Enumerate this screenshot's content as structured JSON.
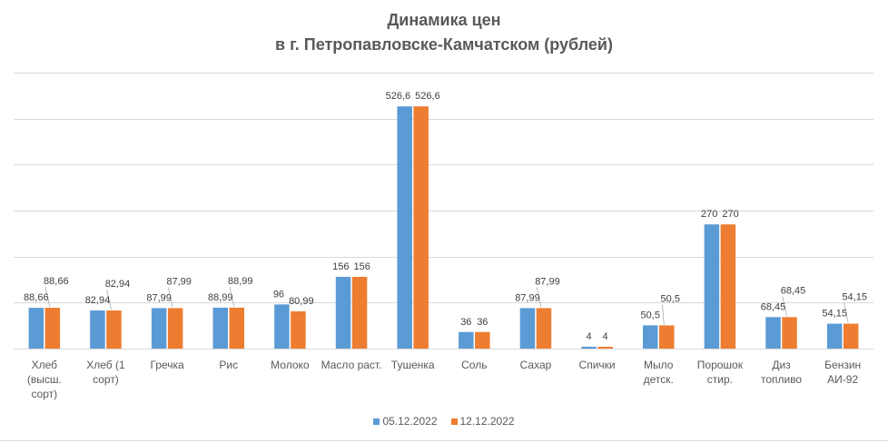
{
  "chart_data": {
    "type": "bar",
    "title": "Динамика цен",
    "subtitle": "в г. Петропавловске-Камчатском (рублей)",
    "categories": [
      "Хлеб (высш. сорт)",
      "Хлеб (1 сорт)",
      "Гречка",
      "Рис",
      "Молоко",
      "Масло раст.",
      "Тушенка",
      "Соль",
      "Сахар",
      "Спички",
      "Мыло детск.",
      "Порошок стир.",
      "Диз топливо",
      "Бензин АИ-92"
    ],
    "series": [
      {
        "name": "05.12.2022",
        "color": "#5b9bd5",
        "values": [
          88.66,
          82.94,
          87.99,
          88.99,
          96,
          156,
          526.6,
          36,
          87.99,
          4,
          50.5,
          270,
          68.45,
          54.15
        ]
      },
      {
        "name": "12.12.2022",
        "color": "#ed7d31",
        "values": [
          88.66,
          82.94,
          87.99,
          88.99,
          80.99,
          156,
          526.6,
          36,
          87.99,
          4,
          50.5,
          270,
          68.45,
          54.15
        ]
      }
    ],
    "ylim": [
      0,
      600
    ],
    "yticks": [
      0,
      100,
      200,
      300,
      400,
      500,
      600
    ],
    "show_y_tick_labels": false,
    "grid": true,
    "data_labels": true,
    "legend": "bottom"
  }
}
